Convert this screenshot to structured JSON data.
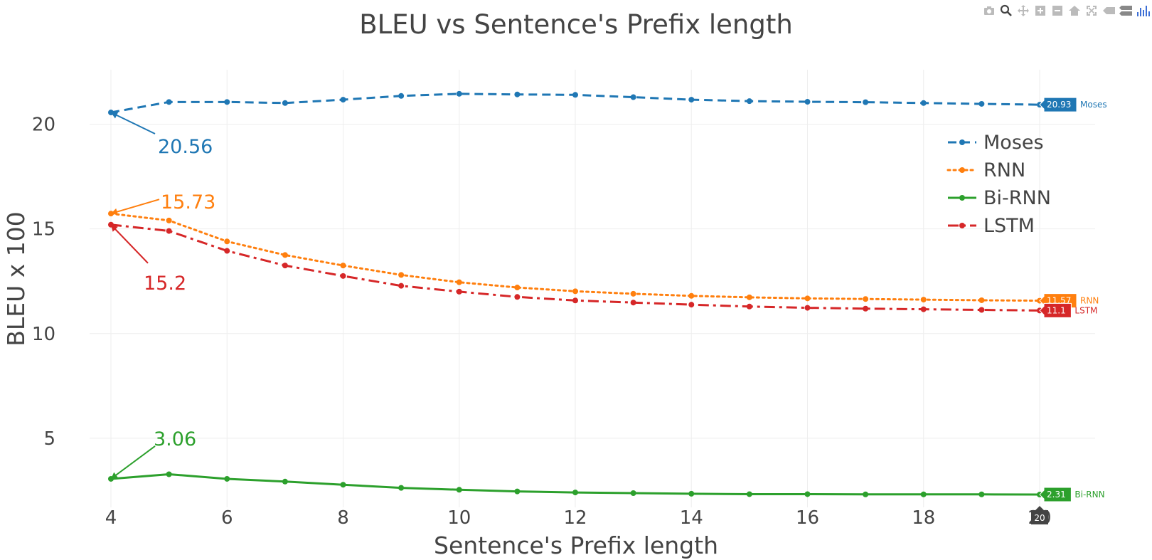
{
  "chart_data": {
    "type": "line",
    "title": "BLEU vs Sentence's Prefix length",
    "xlabel": "Sentence's Prefix length",
    "ylabel": "BLEU x 100",
    "xlim": [
      4,
      20
    ],
    "ylim": [
      1.7,
      22.6
    ],
    "xticks": [
      4,
      6,
      8,
      10,
      12,
      14,
      16,
      18,
      20
    ],
    "yticks": [
      5,
      10,
      15,
      20
    ],
    "grid": true,
    "legend_position": "top-right",
    "x": [
      4,
      5,
      6,
      7,
      8,
      9,
      10,
      11,
      12,
      13,
      14,
      15,
      16,
      17,
      18,
      19,
      20
    ],
    "series": [
      {
        "name": "Moses",
        "color": "#1f77b4",
        "dash": "dash",
        "values": [
          20.56,
          21.06,
          21.06,
          21.01,
          21.17,
          21.35,
          21.45,
          21.42,
          21.4,
          21.29,
          21.17,
          21.1,
          21.07,
          21.05,
          21.01,
          20.97,
          20.93
        ]
      },
      {
        "name": "RNN",
        "color": "#ff7f0e",
        "dash": "dot",
        "values": [
          15.73,
          15.4,
          14.4,
          13.75,
          13.25,
          12.8,
          12.45,
          12.2,
          12.02,
          11.9,
          11.8,
          11.73,
          11.68,
          11.65,
          11.62,
          11.59,
          11.57
        ]
      },
      {
        "name": "Bi-RNN",
        "color": "#2ca02c",
        "dash": "solid",
        "values": [
          3.06,
          3.28,
          3.06,
          2.93,
          2.78,
          2.63,
          2.54,
          2.46,
          2.41,
          2.38,
          2.35,
          2.33,
          2.33,
          2.32,
          2.32,
          2.32,
          2.31
        ]
      },
      {
        "name": "LSTM",
        "color": "#d62728",
        "dash": "dashdot",
        "values": [
          15.2,
          14.9,
          13.95,
          13.25,
          12.75,
          12.28,
          12.0,
          11.75,
          11.58,
          11.48,
          11.38,
          11.29,
          11.23,
          11.19,
          11.16,
          11.13,
          11.1
        ]
      }
    ],
    "annotations": [
      {
        "text": "20.56",
        "series": "Moses",
        "x": 4,
        "y": 20.56,
        "color": "#1f77b4"
      },
      {
        "text": "15.73",
        "series": "RNN",
        "x": 4,
        "y": 15.73,
        "color": "#ff7f0e"
      },
      {
        "text": "15.2",
        "series": "LSTM",
        "x": 4,
        "y": 15.2,
        "color": "#d62728"
      },
      {
        "text": "3.06",
        "series": "Bi-RNN",
        "x": 4,
        "y": 3.06,
        "color": "#2ca02c"
      }
    ],
    "hover": {
      "x_label": "20",
      "labels": [
        {
          "series": "Moses",
          "value": "20.93",
          "name": "Moses",
          "color": "#1f77b4",
          "text_color": "#ffffff"
        },
        {
          "series": "RNN",
          "value": "11.57",
          "name": "RNN",
          "color": "#ff7f0e",
          "text_color": "#000000"
        },
        {
          "series": "LSTM",
          "value": "11.1",
          "name": "LSTM",
          "color": "#d62728",
          "text_color": "#ffffff"
        },
        {
          "series": "Bi-RNN",
          "value": "2.31",
          "name": "Bi-RNN",
          "color": "#2ca02c",
          "text_color": "#ffffff"
        }
      ]
    }
  },
  "modebar": {
    "icons": [
      "camera-icon",
      "zoom-icon",
      "pan-icon",
      "zoom-in-icon",
      "zoom-out-icon",
      "home-icon",
      "autoscale-icon",
      "hover-closest-icon",
      "hover-compare-icon",
      "plotly-logo-icon"
    ]
  }
}
